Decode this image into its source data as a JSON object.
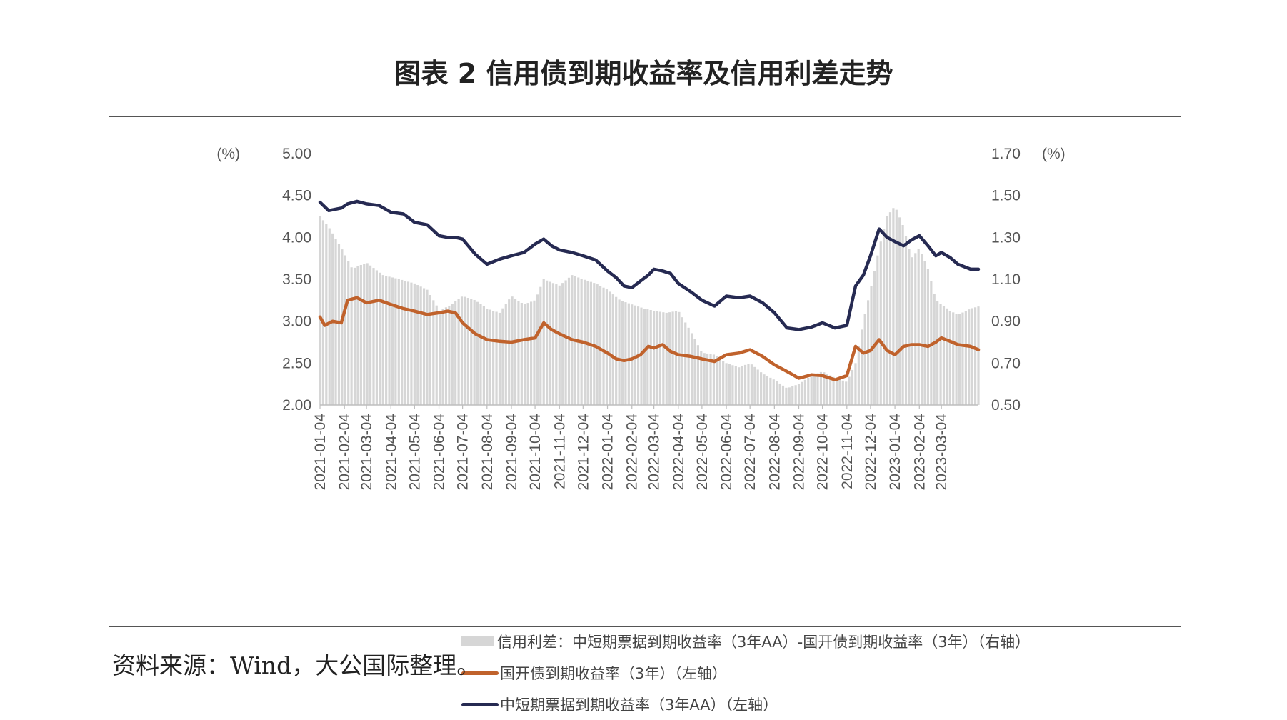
{
  "title": "图表 2  信用债到期收益率及信用利差走势",
  "source": "资料来源：Wind，大公国际整理。",
  "colors": {
    "bars": "#d6d6d6",
    "cdb": "#c0622c",
    "mtn": "#262a52"
  },
  "chart_data": {
    "type": "line",
    "left_axis": {
      "unit_label": "(%)",
      "ylim": [
        2.0,
        5.0
      ],
      "ticks": [
        "2.00",
        "2.50",
        "3.00",
        "3.50",
        "4.00",
        "4.50",
        "5.00"
      ]
    },
    "right_axis": {
      "unit_label": "(%)",
      "ylim": [
        0.5,
        1.7
      ],
      "ticks": [
        "0.50",
        "0.70",
        "0.90",
        "1.10",
        "1.30",
        "1.50",
        "1.70"
      ]
    },
    "x_ticks": [
      "2021-01-04",
      "2021-02-04",
      "2021-03-04",
      "2021-04-04",
      "2021-05-04",
      "2021-06-04",
      "2021-07-04",
      "2021-08-04",
      "2021-09-04",
      "2021-10-04",
      "2021-11-04",
      "2021-12-04",
      "2022-01-04",
      "2022-02-04",
      "2022-03-04",
      "2022-04-04",
      "2022-05-04",
      "2022-06-04",
      "2022-07-04",
      "2022-08-04",
      "2022-09-04",
      "2022-10-04",
      "2022-11-04",
      "2022-12-04",
      "2023-01-04",
      "2023-02-04",
      "2023-03-04"
    ],
    "x_range": [
      "2021-01-04",
      "2023-04-20"
    ],
    "series": [
      {
        "name": "信用利差：中短期票据到期收益率（3年AA）-国开债到期收益率（3年）（右轴）",
        "type": "bar",
        "axis": "right",
        "points": [
          [
            "2021-01-04",
            1.4
          ],
          [
            "2021-01-15",
            1.35
          ],
          [
            "2021-01-31",
            1.25
          ],
          [
            "2021-02-14",
            1.15
          ],
          [
            "2021-03-04",
            1.18
          ],
          [
            "2021-03-25",
            1.12
          ],
          [
            "2021-04-15",
            1.1
          ],
          [
            "2021-05-04",
            1.08
          ],
          [
            "2021-05-20",
            1.05
          ],
          [
            "2021-06-05",
            0.95
          ],
          [
            "2021-06-20",
            0.98
          ],
          [
            "2021-07-04",
            1.02
          ],
          [
            "2021-07-20",
            1.0
          ],
          [
            "2021-08-04",
            0.96
          ],
          [
            "2021-08-20",
            0.94
          ],
          [
            "2021-09-04",
            1.02
          ],
          [
            "2021-09-20",
            0.98
          ],
          [
            "2021-10-04",
            1.0
          ],
          [
            "2021-10-15",
            1.1
          ],
          [
            "2021-11-04",
            1.07
          ],
          [
            "2021-11-20",
            1.12
          ],
          [
            "2021-12-04",
            1.1
          ],
          [
            "2021-12-20",
            1.08
          ],
          [
            "2022-01-04",
            1.05
          ],
          [
            "2022-01-20",
            1.0
          ],
          [
            "2022-02-04",
            0.98
          ],
          [
            "2022-02-20",
            0.96
          ],
          [
            "2022-03-04",
            0.95
          ],
          [
            "2022-03-20",
            0.94
          ],
          [
            "2022-04-04",
            0.95
          ],
          [
            "2022-04-20",
            0.85
          ],
          [
            "2022-05-04",
            0.75
          ],
          [
            "2022-05-20",
            0.74
          ],
          [
            "2022-06-04",
            0.7
          ],
          [
            "2022-06-20",
            0.68
          ],
          [
            "2022-07-04",
            0.7
          ],
          [
            "2022-07-20",
            0.65
          ],
          [
            "2022-08-04",
            0.62
          ],
          [
            "2022-08-20",
            0.58
          ],
          [
            "2022-09-04",
            0.6
          ],
          [
            "2022-09-20",
            0.64
          ],
          [
            "2022-10-04",
            0.66
          ],
          [
            "2022-10-20",
            0.63
          ],
          [
            "2022-11-04",
            0.61
          ],
          [
            "2022-11-15",
            0.7
          ],
          [
            "2022-11-25",
            0.9
          ],
          [
            "2022-12-04",
            1.05
          ],
          [
            "2022-12-15",
            1.25
          ],
          [
            "2022-12-25",
            1.4
          ],
          [
            "2023-01-04",
            1.45
          ],
          [
            "2023-01-15",
            1.35
          ],
          [
            "2023-01-25",
            1.2
          ],
          [
            "2023-02-04",
            1.25
          ],
          [
            "2023-02-15",
            1.15
          ],
          [
            "2023-02-25",
            1.0
          ],
          [
            "2023-03-04",
            0.98
          ],
          [
            "2023-03-15",
            0.95
          ],
          [
            "2023-03-25",
            0.93
          ],
          [
            "2023-04-10",
            0.96
          ],
          [
            "2023-04-20",
            0.97
          ]
        ]
      },
      {
        "name": "国开债到期收益率（3年）（左轴）",
        "type": "line",
        "axis": "left",
        "points": [
          [
            "2021-01-04",
            3.05
          ],
          [
            "2021-01-10",
            2.95
          ],
          [
            "2021-01-20",
            3.0
          ],
          [
            "2021-01-31",
            2.98
          ],
          [
            "2021-02-08",
            3.25
          ],
          [
            "2021-02-20",
            3.28
          ],
          [
            "2021-03-04",
            3.22
          ],
          [
            "2021-03-20",
            3.25
          ],
          [
            "2021-04-04",
            3.2
          ],
          [
            "2021-04-20",
            3.15
          ],
          [
            "2021-05-04",
            3.12
          ],
          [
            "2021-05-20",
            3.08
          ],
          [
            "2021-06-04",
            3.1
          ],
          [
            "2021-06-15",
            3.12
          ],
          [
            "2021-06-25",
            3.1
          ],
          [
            "2021-07-04",
            2.98
          ],
          [
            "2021-07-20",
            2.85
          ],
          [
            "2021-08-04",
            2.78
          ],
          [
            "2021-08-20",
            2.76
          ],
          [
            "2021-09-04",
            2.75
          ],
          [
            "2021-09-20",
            2.78
          ],
          [
            "2021-10-04",
            2.8
          ],
          [
            "2021-10-15",
            2.98
          ],
          [
            "2021-10-25",
            2.9
          ],
          [
            "2021-11-04",
            2.85
          ],
          [
            "2021-11-20",
            2.78
          ],
          [
            "2021-12-04",
            2.75
          ],
          [
            "2021-12-20",
            2.7
          ],
          [
            "2022-01-04",
            2.62
          ],
          [
            "2022-01-15",
            2.55
          ],
          [
            "2022-01-25",
            2.53
          ],
          [
            "2022-02-04",
            2.55
          ],
          [
            "2022-02-15",
            2.6
          ],
          [
            "2022-02-25",
            2.7
          ],
          [
            "2022-03-04",
            2.68
          ],
          [
            "2022-03-15",
            2.72
          ],
          [
            "2022-03-25",
            2.64
          ],
          [
            "2022-04-04",
            2.6
          ],
          [
            "2022-04-20",
            2.58
          ],
          [
            "2022-05-04",
            2.55
          ],
          [
            "2022-05-20",
            2.52
          ],
          [
            "2022-06-04",
            2.6
          ],
          [
            "2022-06-20",
            2.62
          ],
          [
            "2022-07-04",
            2.66
          ],
          [
            "2022-07-20",
            2.58
          ],
          [
            "2022-08-04",
            2.48
          ],
          [
            "2022-08-20",
            2.4
          ],
          [
            "2022-09-04",
            2.32
          ],
          [
            "2022-09-20",
            2.36
          ],
          [
            "2022-10-04",
            2.35
          ],
          [
            "2022-10-20",
            2.3
          ],
          [
            "2022-11-04",
            2.35
          ],
          [
            "2022-11-15",
            2.7
          ],
          [
            "2022-11-25",
            2.62
          ],
          [
            "2022-12-04",
            2.65
          ],
          [
            "2022-12-15",
            2.78
          ],
          [
            "2022-12-25",
            2.65
          ],
          [
            "2023-01-04",
            2.6
          ],
          [
            "2023-01-15",
            2.7
          ],
          [
            "2023-01-25",
            2.72
          ],
          [
            "2023-02-04",
            2.72
          ],
          [
            "2023-02-15",
            2.7
          ],
          [
            "2023-02-25",
            2.75
          ],
          [
            "2023-03-04",
            2.8
          ],
          [
            "2023-03-15",
            2.76
          ],
          [
            "2023-03-25",
            2.72
          ],
          [
            "2023-04-10",
            2.7
          ],
          [
            "2023-04-20",
            2.66
          ]
        ]
      },
      {
        "name": "中短期票据到期收益率（3年AA）（左轴）",
        "type": "line",
        "axis": "left",
        "points": [
          [
            "2021-01-04",
            4.42
          ],
          [
            "2021-01-15",
            4.32
          ],
          [
            "2021-01-31",
            4.35
          ],
          [
            "2021-02-08",
            4.4
          ],
          [
            "2021-02-20",
            4.43
          ],
          [
            "2021-03-04",
            4.4
          ],
          [
            "2021-03-20",
            4.38
          ],
          [
            "2021-04-04",
            4.3
          ],
          [
            "2021-04-20",
            4.28
          ],
          [
            "2021-05-04",
            4.18
          ],
          [
            "2021-05-20",
            4.15
          ],
          [
            "2021-06-04",
            4.02
          ],
          [
            "2021-06-15",
            4.0
          ],
          [
            "2021-06-25",
            4.0
          ],
          [
            "2021-07-04",
            3.98
          ],
          [
            "2021-07-20",
            3.8
          ],
          [
            "2021-08-04",
            3.68
          ],
          [
            "2021-08-20",
            3.74
          ],
          [
            "2021-09-04",
            3.78
          ],
          [
            "2021-09-20",
            3.82
          ],
          [
            "2021-10-04",
            3.92
          ],
          [
            "2021-10-15",
            3.98
          ],
          [
            "2021-10-25",
            3.9
          ],
          [
            "2021-11-04",
            3.85
          ],
          [
            "2021-11-20",
            3.82
          ],
          [
            "2021-12-04",
            3.78
          ],
          [
            "2021-12-20",
            3.73
          ],
          [
            "2022-01-04",
            3.6
          ],
          [
            "2022-01-15",
            3.52
          ],
          [
            "2022-01-25",
            3.42
          ],
          [
            "2022-02-04",
            3.4
          ],
          [
            "2022-02-15",
            3.48
          ],
          [
            "2022-02-25",
            3.55
          ],
          [
            "2022-03-04",
            3.62
          ],
          [
            "2022-03-15",
            3.6
          ],
          [
            "2022-03-25",
            3.57
          ],
          [
            "2022-04-04",
            3.45
          ],
          [
            "2022-04-20",
            3.35
          ],
          [
            "2022-05-04",
            3.25
          ],
          [
            "2022-05-20",
            3.18
          ],
          [
            "2022-06-04",
            3.3
          ],
          [
            "2022-06-20",
            3.28
          ],
          [
            "2022-07-04",
            3.3
          ],
          [
            "2022-07-20",
            3.22
          ],
          [
            "2022-08-04",
            3.1
          ],
          [
            "2022-08-20",
            2.92
          ],
          [
            "2022-09-04",
            2.9
          ],
          [
            "2022-09-20",
            2.93
          ],
          [
            "2022-10-04",
            2.98
          ],
          [
            "2022-10-20",
            2.92
          ],
          [
            "2022-11-04",
            2.95
          ],
          [
            "2022-11-15",
            3.42
          ],
          [
            "2022-11-25",
            3.55
          ],
          [
            "2022-12-04",
            3.78
          ],
          [
            "2022-12-15",
            4.1
          ],
          [
            "2022-12-25",
            4.0
          ],
          [
            "2023-01-04",
            3.95
          ],
          [
            "2023-01-15",
            3.9
          ],
          [
            "2023-01-25",
            3.97
          ],
          [
            "2023-02-04",
            4.02
          ],
          [
            "2023-02-15",
            3.9
          ],
          [
            "2023-02-25",
            3.78
          ],
          [
            "2023-03-04",
            3.82
          ],
          [
            "2023-03-15",
            3.76
          ],
          [
            "2023-03-25",
            3.68
          ],
          [
            "2023-04-10",
            3.62
          ],
          [
            "2023-04-20",
            3.62
          ]
        ]
      }
    ]
  }
}
